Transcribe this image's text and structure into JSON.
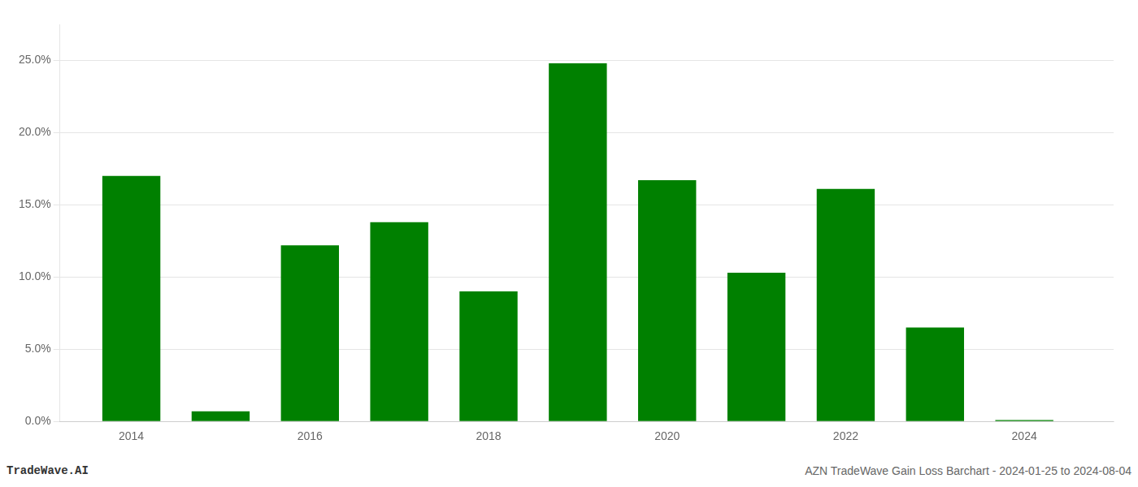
{
  "chart_data": {
    "type": "bar",
    "x": [
      2014,
      2015,
      2016,
      2017,
      2018,
      2019,
      2020,
      2021,
      2022,
      2023,
      2024
    ],
    "values": [
      0.17,
      0.007,
      0.122,
      0.138,
      0.09,
      0.248,
      0.167,
      0.103,
      0.161,
      0.065,
      0.001
    ],
    "color": "#008000",
    "xlim": [
      2013.2,
      2025.0
    ],
    "xticks": [
      2014,
      2016,
      2018,
      2020,
      2022,
      2024
    ],
    "ylim": [
      0,
      0.275
    ],
    "yticks": [
      {
        "value": 0.0,
        "label": "0.0%"
      },
      {
        "value": 0.05,
        "label": "5.0%"
      },
      {
        "value": 0.1,
        "label": "10.0%"
      },
      {
        "value": 0.15,
        "label": "15.0%"
      },
      {
        "value": 0.2,
        "label": "20.0%"
      },
      {
        "value": 0.25,
        "label": "25.0%"
      }
    ],
    "grid": "y",
    "annotations": [
      "TradeWave.AI",
      "AZN TradeWave Gain Loss Barchart - 2024-01-25 to 2024-08-04"
    ]
  }
}
